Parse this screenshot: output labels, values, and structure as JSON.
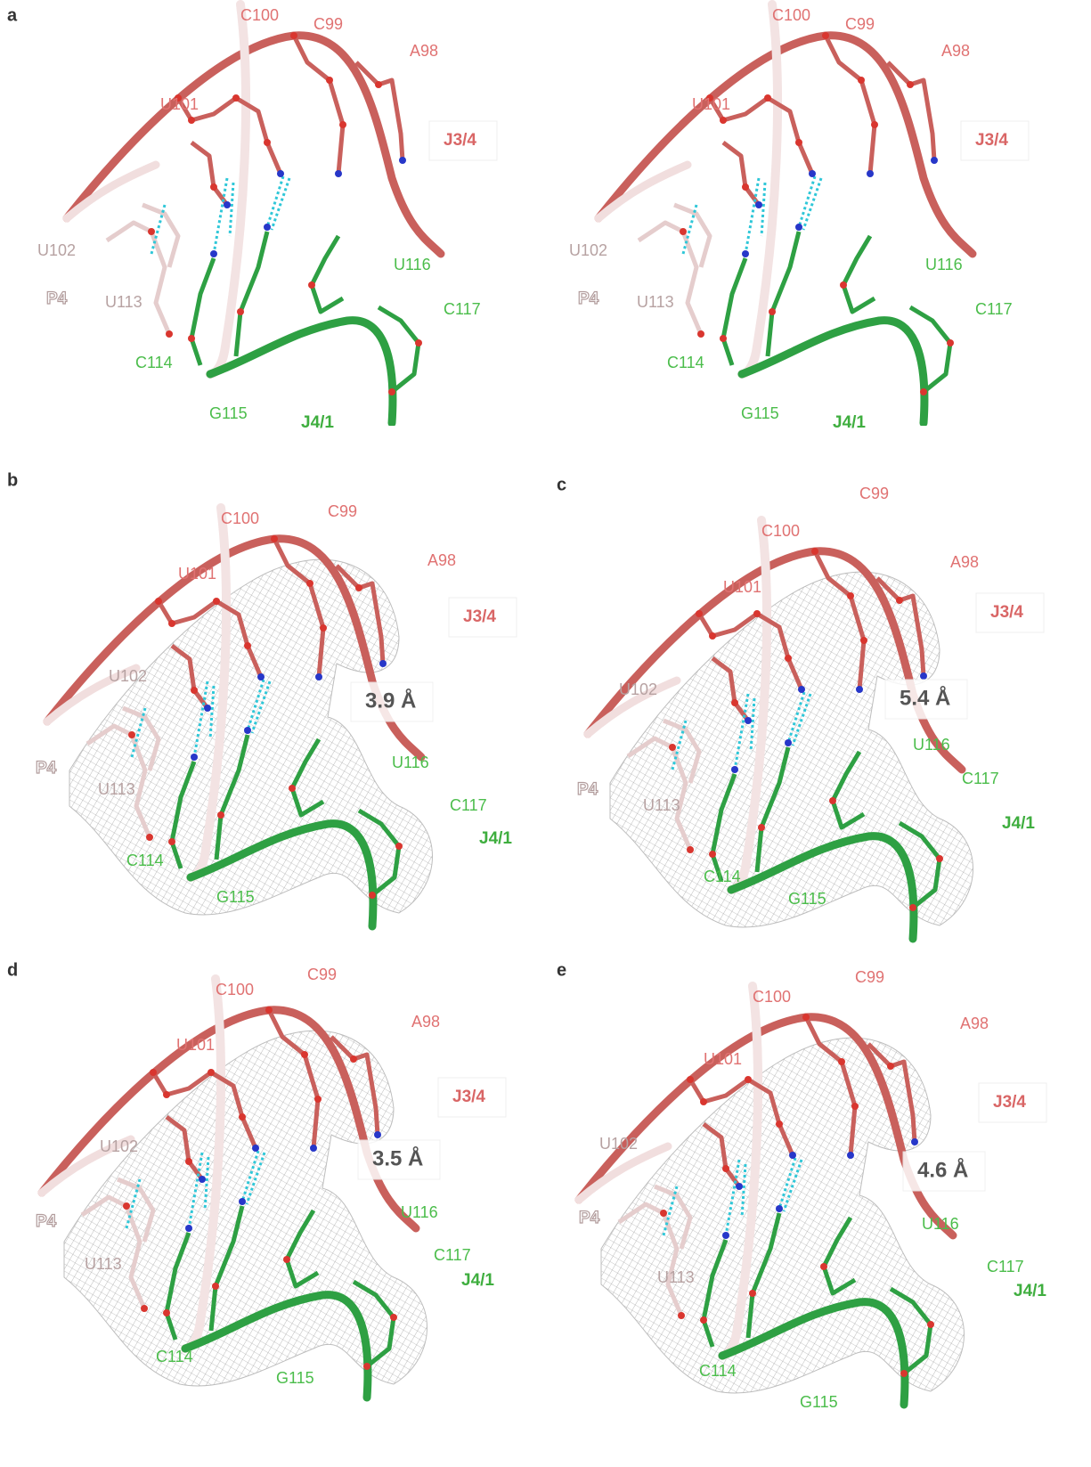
{
  "panels": [
    {
      "letter": "a",
      "views": [
        {
          "labels": [
            "C100",
            "C99",
            "A98",
            "U101",
            "J3/4",
            "U102",
            "U116",
            "P4",
            "U113",
            "C117",
            "C114",
            "G115",
            "J4/1"
          ]
        },
        {
          "labels": [
            "C100",
            "C99",
            "A98",
            "U101",
            "J3/4",
            "U102",
            "U116",
            "P4",
            "U113",
            "C117",
            "C114",
            "G115",
            "J4/1"
          ]
        }
      ]
    },
    {
      "letter": "b",
      "views": [
        {
          "labels": [
            "C100",
            "C99",
            "A98",
            "U101",
            "J3/4",
            "U102",
            "3.9 Å",
            "P4",
            "U116",
            "U113",
            "C117",
            "J4/1",
            "C114",
            "G115"
          ]
        }
      ]
    },
    {
      "letter": "c",
      "views": [
        {
          "labels": [
            "C99",
            "C100",
            "A98",
            "U101",
            "J3/4",
            "U102",
            "5.4 Å",
            "U116",
            "P4",
            "C117",
            "U113",
            "J4/1",
            "C114",
            "G115"
          ]
        }
      ]
    },
    {
      "letter": "d",
      "views": [
        {
          "labels": [
            "C99",
            "C100",
            "A98",
            "U101",
            "J3/4",
            "U102",
            "3.5 Å",
            "P4",
            "U116",
            "U113",
            "C117",
            "J4/1",
            "C114",
            "G115"
          ]
        }
      ]
    },
    {
      "letter": "e",
      "views": [
        {
          "labels": [
            "C99",
            "C100",
            "A98",
            "U101",
            "J3/4",
            "U102",
            "4.6 Å",
            "P4",
            "U116",
            "C117",
            "U113",
            "J4/1",
            "C114",
            "G115"
          ]
        }
      ]
    }
  ]
}
